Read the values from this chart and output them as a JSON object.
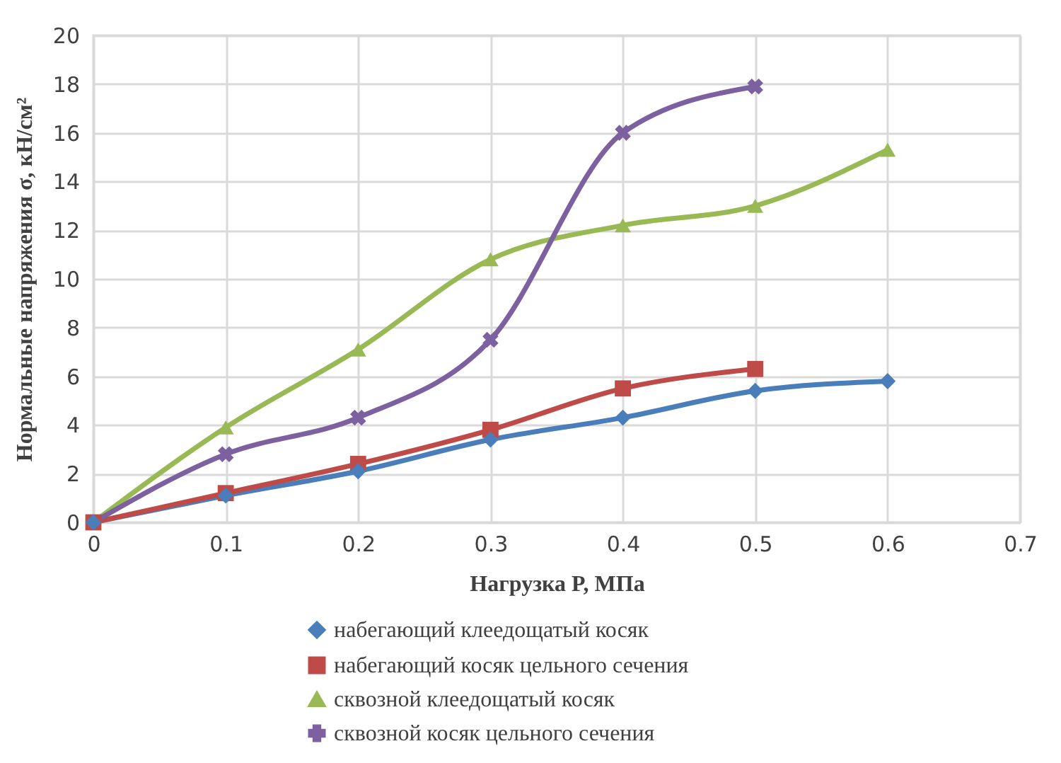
{
  "chart_data": {
    "type": "line",
    "xlabel": "Нагрузка P, МПа",
    "ylabel": "Нормальные напряжения σ, кН/см²",
    "x": [
      0,
      0.1,
      0.2,
      0.3,
      0.4,
      0.5,
      0.6
    ],
    "xlim": [
      0,
      0.7
    ],
    "xticks": [
      0,
      0.1,
      0.2,
      0.3,
      0.4,
      0.5,
      0.6,
      0.7
    ],
    "ylim": [
      0,
      20
    ],
    "yticks": [
      0,
      2,
      4,
      6,
      8,
      10,
      12,
      14,
      16,
      18,
      20
    ],
    "grid": true,
    "legend": "bottom",
    "line_style": "solid",
    "series": [
      {
        "name": "набегающий клеедощатый косяк",
        "color": "#4a7ebb",
        "marker": "diamond",
        "values": [
          0,
          1.1,
          2.1,
          3.4,
          4.3,
          5.4,
          5.8
        ]
      },
      {
        "name": "набегающий косяк цельного сечения",
        "color": "#be4b48",
        "marker": "square",
        "values": [
          0,
          1.2,
          2.4,
          3.8,
          5.5,
          6.3,
          null
        ]
      },
      {
        "name": "сквозной клеедощатый косяк",
        "color": "#98b954",
        "marker": "triangle",
        "values": [
          0,
          3.9,
          7.1,
          10.8,
          12.2,
          13.0,
          15.3
        ]
      },
      {
        "name": "сквозной косяк цельного сечения",
        "color": "#7d60a0",
        "marker": "cross",
        "values": [
          0,
          2.8,
          4.3,
          7.5,
          16.0,
          17.9,
          null
        ]
      }
    ]
  }
}
